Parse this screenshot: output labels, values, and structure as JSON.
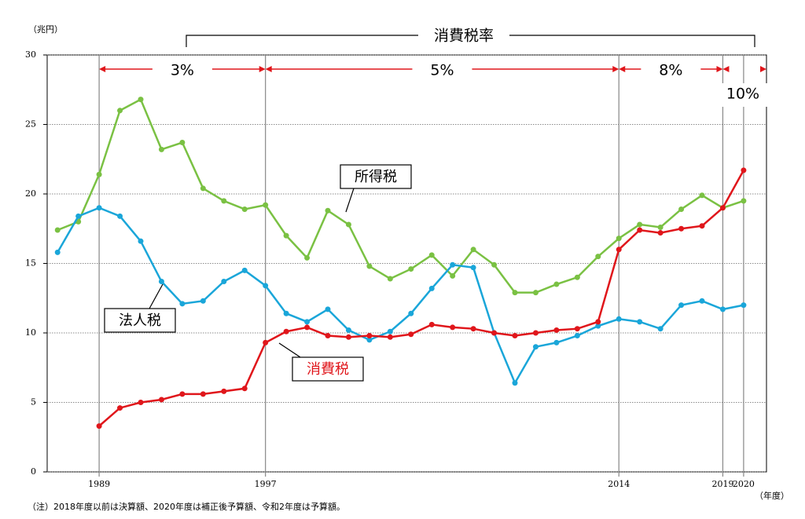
{
  "chart_data": {
    "type": "line",
    "unit_label": "（兆円）",
    "x_unit_label": "（年度）",
    "rate_title": "消費税率",
    "rate_labels": [
      "3%",
      "5%",
      "8%",
      "10%"
    ],
    "note": "（注）2018年度以前は決算額、2020年度は補正後予算額、令和2年度は予算額。",
    "x": [
      1987,
      1988,
      1989,
      1990,
      1991,
      1992,
      1993,
      1994,
      1995,
      1996,
      1997,
      1998,
      1999,
      2000,
      2001,
      2002,
      2003,
      2004,
      2005,
      2006,
      2007,
      2008,
      2009,
      2010,
      2011,
      2012,
      2013,
      2014,
      2015,
      2016,
      2017,
      2018,
      2019,
      2020
    ],
    "series": [
      {
        "name": "所得税",
        "color": "#7ac143",
        "values": [
          17.4,
          18.0,
          21.4,
          26.0,
          26.8,
          23.2,
          23.7,
          20.4,
          19.5,
          18.9,
          19.2,
          17.0,
          15.4,
          18.8,
          17.8,
          14.8,
          13.9,
          14.6,
          15.6,
          14.1,
          16.0,
          14.9,
          12.9,
          12.9,
          13.5,
          14.0,
          15.5,
          16.8,
          17.8,
          17.6,
          18.9,
          19.9,
          19.0,
          19.5
        ]
      },
      {
        "name": "法人税",
        "color": "#1aa6d9",
        "values": [
          15.8,
          18.4,
          19.0,
          18.4,
          16.6,
          13.7,
          12.1,
          12.3,
          13.7,
          14.5,
          13.4,
          11.4,
          10.8,
          11.7,
          10.2,
          9.5,
          10.1,
          11.4,
          13.2,
          14.9,
          14.7,
          10.0,
          6.4,
          9.0,
          9.3,
          9.8,
          10.5,
          11.0,
          10.8,
          10.3,
          12.0,
          12.3,
          11.7,
          12.0
        ]
      },
      {
        "name": "消費税",
        "color": "#e0161b",
        "values": [
          null,
          null,
          3.3,
          4.6,
          5.0,
          5.2,
          5.6,
          5.6,
          5.8,
          6.0,
          9.3,
          10.1,
          10.4,
          9.8,
          9.7,
          9.8,
          9.7,
          9.9,
          10.6,
          10.4,
          10.3,
          10.0,
          9.8,
          10.0,
          10.2,
          10.3,
          10.8,
          16.0,
          17.4,
          17.2,
          17.5,
          17.7,
          19.0,
          21.7
        ]
      }
    ],
    "xlim": [
      1986.5,
      2021.1
    ],
    "xticks": [
      1989,
      1997,
      2014,
      2019,
      2020
    ],
    "ylim": [
      0,
      30
    ],
    "yticks": [
      0,
      5,
      10,
      15,
      20,
      25,
      30
    ],
    "grid": true
  }
}
